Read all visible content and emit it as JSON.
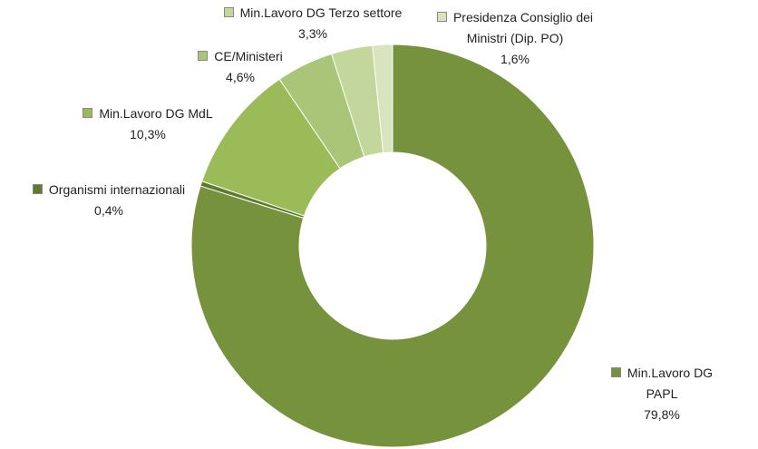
{
  "chart_data": {
    "type": "donut",
    "categories": [
      "Min.Lavoro DG PAPL",
      "Organismi internazionali",
      "Min.Lavoro DG MdL",
      "CE/Ministeri",
      "Min.Lavoro DG Terzo settore",
      "Presidenza Consiglio dei Ministri (Dip. PO)"
    ],
    "values": [
      79.8,
      0.4,
      10.3,
      4.6,
      3.3,
      1.6
    ],
    "value_labels": [
      "79,8%",
      "0,4%",
      "10,3%",
      "4,6%",
      "3,3%",
      "1,6%"
    ],
    "colors": [
      "#76923c",
      "#5f7a2e",
      "#9bbb59",
      "#a9c577",
      "#c3d69b",
      "#d7e4bd"
    ]
  }
}
